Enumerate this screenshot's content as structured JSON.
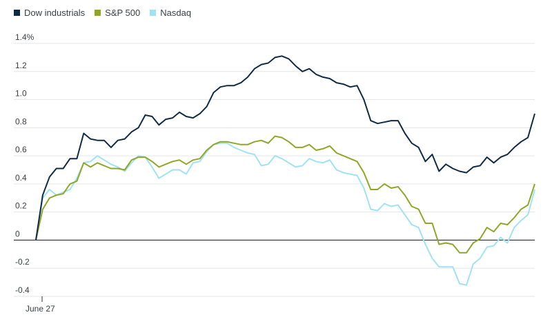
{
  "chart_data": {
    "type": "line",
    "title": "",
    "xlabel": "",
    "ylabel": "",
    "ylim": [
      -0.4,
      1.4
    ],
    "y_ticks": [
      -0.4,
      -0.2,
      0,
      0.2,
      0.4,
      0.6,
      0.8,
      1.0,
      1.2,
      1.4
    ],
    "y_tick_labels": [
      "-0.4",
      "-0.2",
      "0",
      "0.2",
      "0.4",
      "0.6",
      "0.8",
      "1.0",
      "1.2",
      "1.4%"
    ],
    "x_tick_labels": [
      {
        "index": 0,
        "label": "June 27"
      }
    ],
    "grid": true,
    "legend_position": "top-left",
    "series": [
      {
        "name": "Dow industrials",
        "color": "#0f2a47",
        "values": [
          0.0,
          0.32,
          0.45,
          0.51,
          0.51,
          0.58,
          0.58,
          0.76,
          0.72,
          0.71,
          0.71,
          0.66,
          0.71,
          0.72,
          0.77,
          0.8,
          0.89,
          0.88,
          0.82,
          0.86,
          0.87,
          0.91,
          0.88,
          0.87,
          0.9,
          0.95,
          1.05,
          1.09,
          1.1,
          1.1,
          1.12,
          1.16,
          1.22,
          1.25,
          1.26,
          1.3,
          1.31,
          1.29,
          1.24,
          1.2,
          1.22,
          1.18,
          1.16,
          1.15,
          1.12,
          1.11,
          1.09,
          1.1,
          1.0,
          0.85,
          0.83,
          0.84,
          0.85,
          0.85,
          0.76,
          0.69,
          0.66,
          0.56,
          0.61,
          0.49,
          0.54,
          0.51,
          0.49,
          0.48,
          0.52,
          0.53,
          0.59,
          0.55,
          0.59,
          0.61,
          0.66,
          0.7,
          0.73,
          0.9
        ]
      },
      {
        "name": "S&P 500",
        "color": "#8ea726",
        "values": [
          0.0,
          0.22,
          0.3,
          0.32,
          0.33,
          0.4,
          0.42,
          0.55,
          0.52,
          0.55,
          0.53,
          0.51,
          0.51,
          0.5,
          0.57,
          0.59,
          0.59,
          0.56,
          0.52,
          0.54,
          0.56,
          0.57,
          0.54,
          0.57,
          0.58,
          0.64,
          0.68,
          0.7,
          0.7,
          0.69,
          0.68,
          0.68,
          0.7,
          0.71,
          0.69,
          0.74,
          0.73,
          0.7,
          0.66,
          0.66,
          0.68,
          0.64,
          0.65,
          0.67,
          0.62,
          0.6,
          0.58,
          0.56,
          0.48,
          0.36,
          0.36,
          0.4,
          0.37,
          0.38,
          0.32,
          0.24,
          0.22,
          0.12,
          0.12,
          -0.03,
          -0.02,
          -0.03,
          -0.09,
          -0.09,
          -0.02,
          0.01,
          0.09,
          0.06,
          0.12,
          0.11,
          0.16,
          0.22,
          0.25,
          0.4
        ]
      },
      {
        "name": "Nasdaq",
        "color": "#9fe2f5",
        "values": [
          0.0,
          0.3,
          0.36,
          0.32,
          0.34,
          0.36,
          0.44,
          0.55,
          0.56,
          0.6,
          0.57,
          0.54,
          0.52,
          0.49,
          0.55,
          0.6,
          0.59,
          0.52,
          0.44,
          0.47,
          0.5,
          0.5,
          0.47,
          0.55,
          0.56,
          0.63,
          0.68,
          0.69,
          0.69,
          0.66,
          0.64,
          0.62,
          0.61,
          0.53,
          0.54,
          0.6,
          0.58,
          0.55,
          0.52,
          0.53,
          0.58,
          0.56,
          0.55,
          0.57,
          0.5,
          0.48,
          0.47,
          0.46,
          0.37,
          0.22,
          0.21,
          0.26,
          0.24,
          0.25,
          0.18,
          0.11,
          0.09,
          -0.03,
          -0.13,
          -0.19,
          -0.19,
          -0.19,
          -0.31,
          -0.32,
          -0.17,
          -0.13,
          -0.05,
          -0.04,
          0.02,
          -0.02,
          0.09,
          0.14,
          0.18,
          0.36
        ]
      }
    ]
  }
}
